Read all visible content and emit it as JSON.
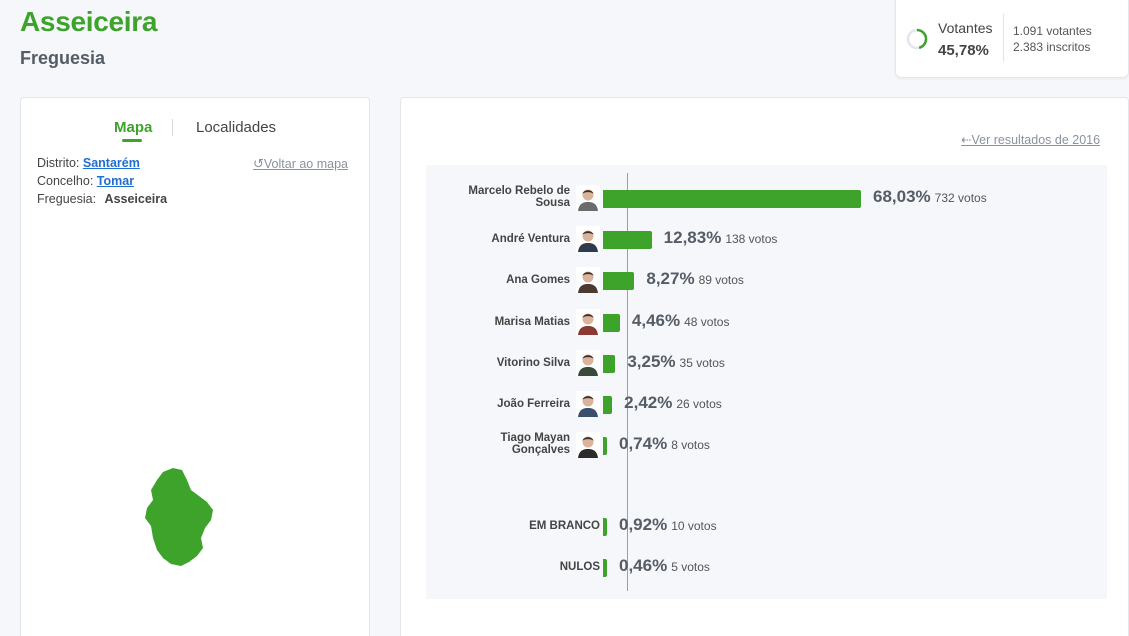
{
  "header": {
    "title": "Asseiceira",
    "subtitle": "Freguesia"
  },
  "turnout": {
    "label": "Votantes",
    "percent": "45,78%",
    "voters": "1.091 votantes",
    "registered": "2.383 inscritos",
    "fraction": 0.4578
  },
  "left_panel": {
    "tabs": {
      "map": "Mapa",
      "localities": "Localidades"
    },
    "district_label": "Distrito:",
    "district": "Santarém",
    "municipality_label": "Concelho:",
    "municipality": "Tomar",
    "parish_label": "Freguesia:",
    "parish": "Asseiceira",
    "back_to_map": "Voltar ao mapa",
    "map_color": "#3da32b"
  },
  "results": {
    "previous_link": "Ver resultados de 2016",
    "bar_color": "#3da32b",
    "candidates": [
      {
        "name_line1": "Marcelo Rebelo de",
        "name_line2": "Sousa",
        "percent": "68,03%",
        "votes": "732 votos",
        "value": 68.03
      },
      {
        "name_line1": "André Ventura",
        "name_line2": "",
        "percent": "12,83%",
        "votes": "138 votos",
        "value": 12.83
      },
      {
        "name_line1": "Ana Gomes",
        "name_line2": "",
        "percent": "8,27%",
        "votes": "89 votos",
        "value": 8.27
      },
      {
        "name_line1": "Marisa Matias",
        "name_line2": "",
        "percent": "4,46%",
        "votes": "48 votos",
        "value": 4.46
      },
      {
        "name_line1": "Vitorino Silva",
        "name_line2": "",
        "percent": "3,25%",
        "votes": "35 votos",
        "value": 3.25
      },
      {
        "name_line1": "João Ferreira",
        "name_line2": "",
        "percent": "2,42%",
        "votes": "26 votos",
        "value": 2.42
      },
      {
        "name_line1": "Tiago Mayan",
        "name_line2": "Gonçalves",
        "percent": "0,74%",
        "votes": "8 votos",
        "value": 0.74
      }
    ],
    "others": [
      {
        "name": "EM BRANCO",
        "percent": "0,92%",
        "votes": "10 votos",
        "value": 0.92
      },
      {
        "name": "NULOS",
        "percent": "0,46%",
        "votes": "5 votos",
        "value": 0.46
      }
    ]
  }
}
